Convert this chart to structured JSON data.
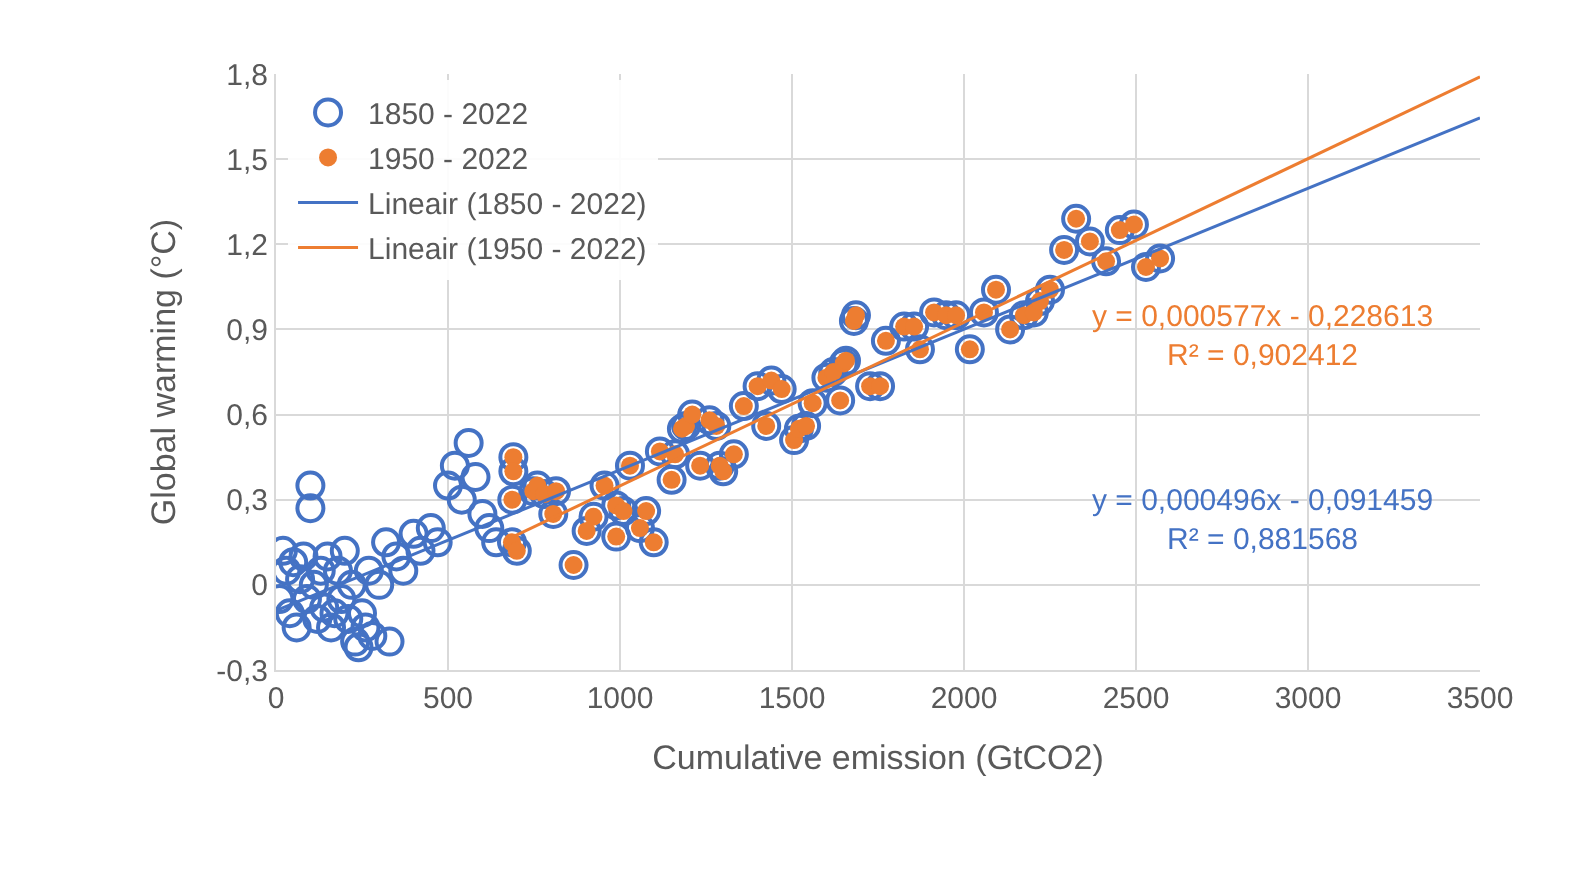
{
  "chart_data": {
    "type": "scatter",
    "xlabel": "Cumulative emission (GtCO2)",
    "ylabel": "Global warming (°C)",
    "xlim": [
      0,
      3500
    ],
    "xticks": [
      0,
      500,
      1000,
      1500,
      2000,
      2500,
      3000,
      3500
    ],
    "ylim": [
      -0.3,
      1.8
    ],
    "yticks": [
      {
        "value": -0.3,
        "label": "-0,3"
      },
      0,
      {
        "value": 0.3,
        "label": "0,3"
      },
      {
        "value": 0.6,
        "label": "0,6"
      },
      {
        "value": 0.9,
        "label": "0,9"
      },
      {
        "value": 1.2,
        "label": "1,2"
      },
      {
        "value": 1.5,
        "label": "1,5"
      },
      {
        "value": 1.8,
        "label": "1,8"
      }
    ],
    "grid": true,
    "legend": "top left",
    "series": [
      {
        "name": "1850 - 2022",
        "marker": "circle",
        "color": "#4472c4",
        "x": [
          10,
          20,
          30,
          40,
          50,
          60,
          70,
          80,
          90,
          100,
          100,
          110,
          120,
          130,
          140,
          150,
          160,
          170,
          180,
          190,
          200,
          210,
          220,
          230,
          240,
          250,
          260,
          270,
          280,
          300,
          320,
          330,
          350,
          370,
          400,
          420,
          450,
          470,
          500,
          520,
          540,
          560,
          580,
          600,
          620,
          640,
          690,
          690,
          687,
          686,
          700,
          748,
          760,
          780,
          806,
          814,
          865,
          903,
          923,
          955,
          989,
          989,
          1010,
          1029,
          1058,
          1076,
          1098,
          1116,
          1150,
          1160,
          1180,
          1192,
          1210,
          1233,
          1260,
          1280,
          1290,
          1300,
          1331,
          1360,
          1400,
          1425,
          1440,
          1470,
          1506,
          1520,
          1541,
          1560,
          1600,
          1620,
          1640,
          1650,
          1657,
          1680,
          1686,
          1727,
          1756,
          1773,
          1826,
          1855,
          1872,
          1913,
          1948,
          1977,
          2017,
          2058,
          2093,
          2134,
          2174,
          2203,
          2221,
          2250,
          2291,
          2326,
          2366,
          2413,
          2453,
          2494,
          2529,
          2570
        ],
        "values": [
          -0.05,
          0.12,
          0.05,
          -0.1,
          0.08,
          -0.15,
          0.02,
          0.1,
          -0.05,
          0.35,
          0.27,
          0.0,
          -0.12,
          0.05,
          -0.08,
          0.1,
          -0.15,
          -0.1,
          0.05,
          -0.05,
          0.12,
          -0.12,
          0.0,
          -0.2,
          -0.22,
          -0.1,
          -0.15,
          0.05,
          -0.18,
          0.0,
          0.15,
          -0.2,
          0.1,
          0.05,
          0.18,
          0.12,
          0.2,
          0.15,
          0.35,
          0.42,
          0.3,
          0.5,
          0.38,
          0.25,
          0.2,
          0.15,
          0.45,
          0.4,
          0.3,
          0.15,
          0.12,
          0.33,
          0.35,
          0.32,
          0.25,
          0.33,
          0.07,
          0.19,
          0.24,
          0.35,
          0.28,
          0.17,
          0.26,
          0.42,
          0.2,
          0.26,
          0.15,
          0.47,
          0.37,
          0.46,
          0.55,
          0.56,
          0.6,
          0.42,
          0.58,
          0.56,
          0.42,
          0.4,
          0.46,
          0.63,
          0.7,
          0.56,
          0.72,
          0.69,
          0.51,
          0.55,
          0.56,
          0.64,
          0.73,
          0.75,
          0.65,
          0.78,
          0.79,
          0.93,
          0.95,
          0.7,
          0.7,
          0.86,
          0.91,
          0.91,
          0.83,
          0.96,
          0.95,
          0.95,
          0.83,
          0.96,
          1.04,
          0.9,
          0.95,
          0.96,
          1.0,
          1.04,
          1.18,
          1.29,
          1.21,
          1.14,
          1.25,
          1.27,
          1.12,
          1.15
        ]
      },
      {
        "name": "1950 - 2022",
        "marker": "circle",
        "color": "#ed7d31",
        "x": [
          690,
          690,
          687,
          686,
          700,
          748,
          760,
          780,
          806,
          814,
          865,
          903,
          923,
          955,
          989,
          989,
          1010,
          1029,
          1058,
          1076,
          1098,
          1116,
          1150,
          1160,
          1180,
          1192,
          1210,
          1233,
          1260,
          1280,
          1290,
          1300,
          1331,
          1360,
          1400,
          1425,
          1440,
          1470,
          1506,
          1520,
          1541,
          1560,
          1600,
          1620,
          1640,
          1650,
          1657,
          1680,
          1686,
          1727,
          1756,
          1773,
          1826,
          1855,
          1872,
          1913,
          1948,
          1977,
          2017,
          2058,
          2093,
          2134,
          2174,
          2203,
          2221,
          2250,
          2291,
          2326,
          2366,
          2413,
          2453,
          2494,
          2529,
          2570
        ],
        "values": [
          0.45,
          0.4,
          0.3,
          0.15,
          0.12,
          0.33,
          0.35,
          0.32,
          0.25,
          0.33,
          0.07,
          0.19,
          0.24,
          0.35,
          0.28,
          0.17,
          0.26,
          0.42,
          0.2,
          0.26,
          0.15,
          0.47,
          0.37,
          0.46,
          0.55,
          0.56,
          0.6,
          0.42,
          0.58,
          0.56,
          0.42,
          0.4,
          0.46,
          0.63,
          0.7,
          0.56,
          0.72,
          0.69,
          0.51,
          0.55,
          0.56,
          0.64,
          0.73,
          0.75,
          0.65,
          0.78,
          0.79,
          0.93,
          0.95,
          0.7,
          0.7,
          0.86,
          0.91,
          0.91,
          0.83,
          0.96,
          0.95,
          0.95,
          0.83,
          0.96,
          1.04,
          0.9,
          0.95,
          0.96,
          1.0,
          1.04,
          1.18,
          1.29,
          1.21,
          1.14,
          1.25,
          1.27,
          1.12,
          1.15
        ]
      },
      {
        "name": "Lineair (1850 - 2022)",
        "type": "line",
        "marker": "none",
        "color": "#4472c4",
        "x": [
          0,
          3500
        ],
        "values": [
          -0.091,
          1.645
        ]
      },
      {
        "name": "Lineair (1950 - 2022)",
        "type": "line",
        "marker": "none",
        "color": "#ed7d31",
        "x": [
          690,
          3500
        ],
        "values": [
          0.17,
          1.79
        ]
      }
    ],
    "annotations": [
      "y = 0,000577x - 0,228613\nR² = 0,902412",
      "y = 0,000496x - 0,091459\nR² = 0,881568"
    ]
  }
}
